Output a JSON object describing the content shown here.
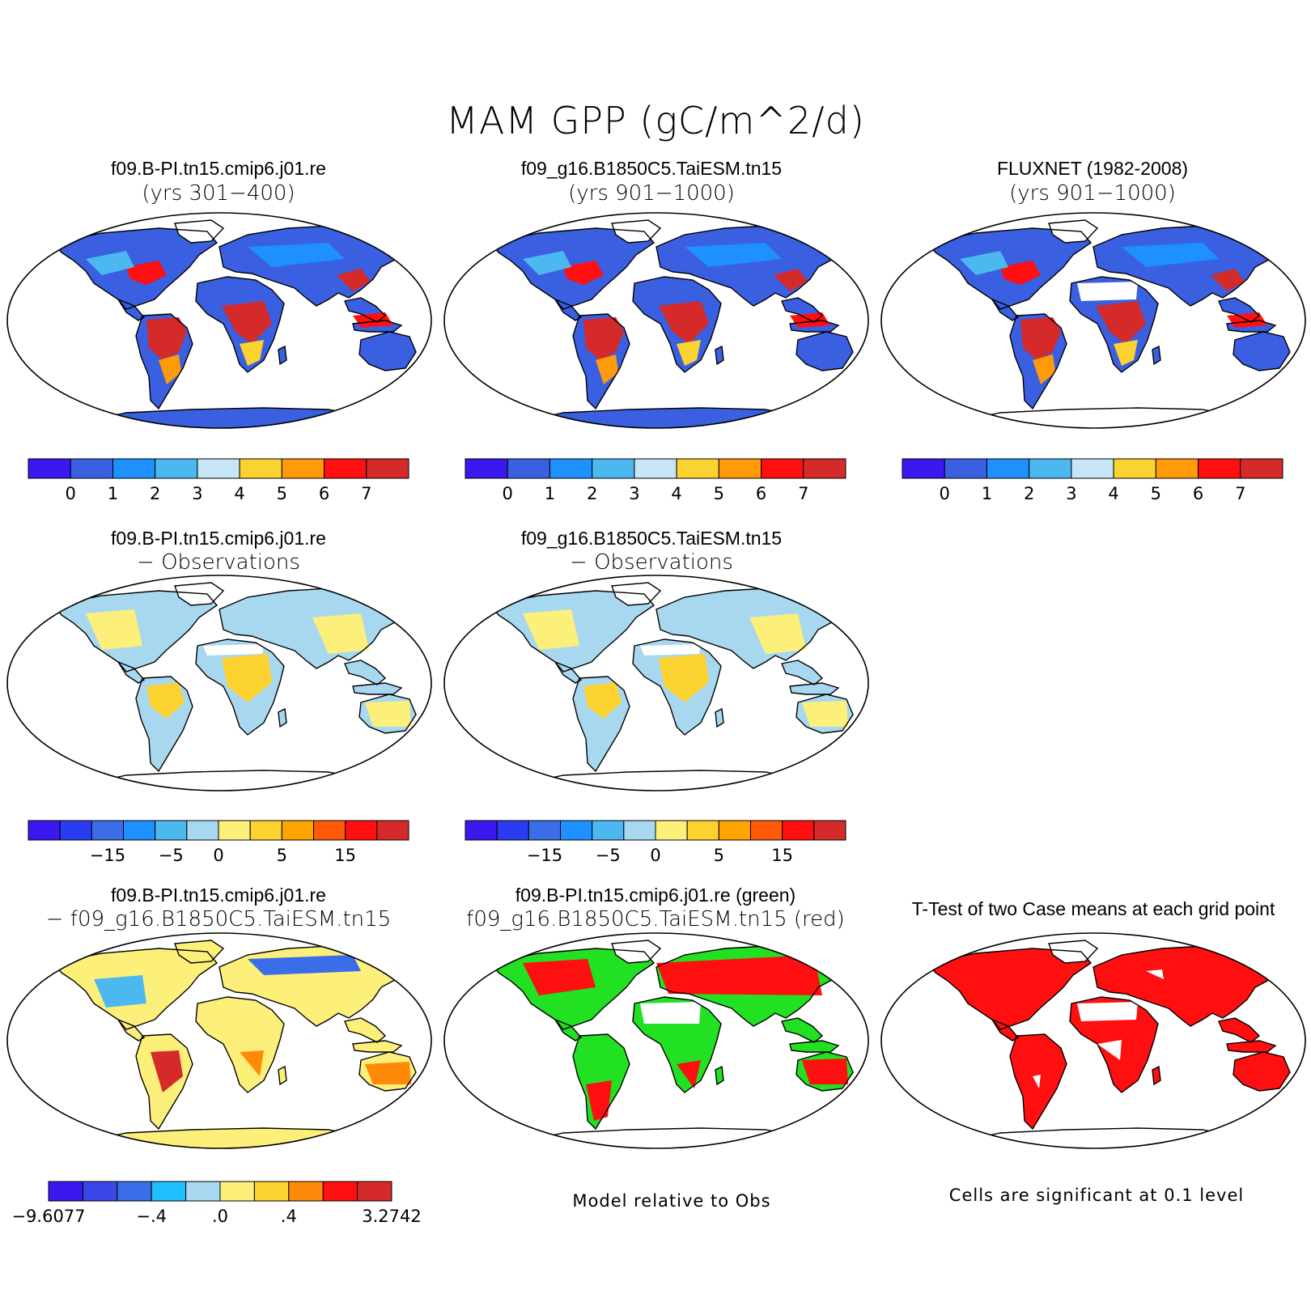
{
  "title": "MAM GPP (gC/m^2/d)",
  "panels": [
    {
      "title": "f09.B-PI.tn15.cmip6.j01.re",
      "subtitle": "(yrs 301−400)",
      "fill": "abs",
      "antarctica": "#3a5fe0"
    },
    {
      "title": "f09_g16.B1850C5.TaiESM.tn15",
      "subtitle": "(yrs 901−1000)",
      "fill": "abs",
      "antarctica": "#3a5fe0"
    },
    {
      "title": "FLUXNET (1982-2008)",
      "subtitle": "(yrs 901−1000)",
      "fill": "abs",
      "antarctica": "none"
    },
    {
      "title": "f09.B-PI.tn15.cmip6.j01.re",
      "subtitle": "− Observations",
      "fill": "diff",
      "antarctica": "none"
    },
    {
      "title": "f09_g16.B1850C5.TaiESM.tn15",
      "subtitle": "− Observations",
      "fill": "diff",
      "antarctica": "none"
    },
    {
      "title": "f09.B-PI.tn15.cmip6.j01.re",
      "subtitle": "− f09_g16.B1850C5.TaiESM.tn15",
      "fill": "modeldiff",
      "antarctica": "#fdf07a"
    },
    {
      "title": "f09.B-PI.tn15.cmip6.j01.re (green)",
      "subtitle": "f09_g16.B1850C5.TaiESM.tn15 (red)",
      "fill": "greenred",
      "antarctica": "none"
    },
    {
      "title": "T-Test of two Case means at each grid point",
      "subtitle": "",
      "fill": "ttest",
      "antarctica": "none"
    }
  ],
  "colorbars": {
    "abs": {
      "colors": [
        "#3a18f0",
        "#3a5fe0",
        "#1e90ff",
        "#4cb8f0",
        "#c6e6f5",
        "#fcd230",
        "#ff9a0a",
        "#ff0f0f",
        "#d42a2a"
      ],
      "labels": [
        "0",
        "1",
        "2",
        "3",
        "4",
        "5",
        "6",
        "7"
      ]
    },
    "diff": {
      "colors": [
        "#3a18f0",
        "#2a3cf0",
        "#3a6ee8",
        "#1e90ff",
        "#4cb8f0",
        "#a8d8f0",
        "#fdf07a",
        "#fcd230",
        "#ffa500",
        "#ff5a0a",
        "#ff0f0f",
        "#d42a2a"
      ],
      "labels": [
        "−15",
        "−5",
        "0",
        "5",
        "15"
      ]
    },
    "modeldiff": {
      "colors": [
        "#3a18f0",
        "#3a48e8",
        "#3a6ee8",
        "#1ec0ff",
        "#a8d8f0",
        "#fdf07a",
        "#fcd230",
        "#ff8a0a",
        "#ff0f0f",
        "#d42a2a"
      ],
      "labels": [
        "−9.6077",
        "−.4",
        ".0",
        ".4",
        "3.2742"
      ]
    }
  },
  "notes": {
    "greenred": "Model relative to Obs",
    "ttest": "Cells are significant at 0.1 level"
  }
}
